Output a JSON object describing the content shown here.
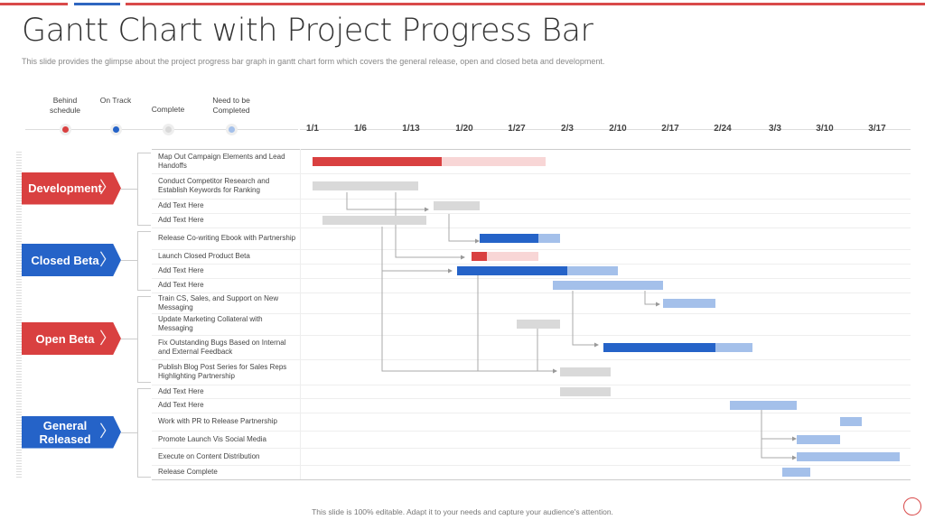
{
  "title": "Gantt Chart with Project Progress Bar",
  "subtitle": "This slide provides the glimpse about the project progress bar graph in gantt chart form which covers the general release, open and closed beta and development.",
  "footer": "This slide is 100% editable. Adapt it to your needs and capture your audience's attention.",
  "colors": {
    "behind": "#d94040",
    "behind_remaining": "#f8d6d6",
    "on_track": "#2563c8",
    "complete": "#d9d9d9",
    "to_complete": "#a4c0ea",
    "accent_red": "#d94a4a",
    "accent_blue": "#2e66c0"
  },
  "legend": [
    {
      "label": "Behind schedule",
      "status": "behind"
    },
    {
      "label": "On Track",
      "status": "on_track"
    },
    {
      "label": "Complete",
      "status": "complete"
    },
    {
      "label": "Need to be Completed",
      "status": "to_complete"
    }
  ],
  "phases": [
    {
      "label": "Development",
      "color": "#d94040"
    },
    {
      "label": "Closed Beta",
      "color": "#2563c8"
    },
    {
      "label": "Open Beta",
      "color": "#d94040"
    },
    {
      "label": "General Released",
      "color": "#2563c8"
    }
  ],
  "chart_data": {
    "type": "gantt",
    "x_ticks": [
      "1/1",
      "1/6",
      "1/13",
      "1/20",
      "1/27",
      "2/3",
      "2/10",
      "2/17",
      "2/24",
      "3/3",
      "3/10",
      "3/17"
    ],
    "tasks": [
      {
        "phase": "Development",
        "label": "Map Out Campaign Elements and Lead Handoffs",
        "segments": [
          {
            "start": "1/1",
            "end": "1/17",
            "status": "behind"
          },
          {
            "start": "1/17",
            "end": "1/31",
            "status": "behind_remaining"
          }
        ]
      },
      {
        "phase": "Development",
        "label": "Conduct Competitor Research and Establish Keywords for Ranking",
        "segments": [
          {
            "start": "1/1",
            "end": "1/14",
            "status": "complete"
          }
        ]
      },
      {
        "phase": "Development",
        "label": "Add Text Here",
        "segments": [
          {
            "start": "1/16",
            "end": "1/22",
            "status": "complete"
          }
        ]
      },
      {
        "phase": "Development",
        "label": "Add Text Here",
        "segments": [
          {
            "start": "1/2",
            "end": "1/15",
            "status": "complete"
          }
        ]
      },
      {
        "phase": "Closed Beta",
        "label": "Release Co-writing Ebook with Partnership",
        "segments": [
          {
            "start": "1/22",
            "end": "1/30",
            "status": "on_track"
          },
          {
            "start": "1/30",
            "end": "2/2",
            "status": "to_complete"
          }
        ]
      },
      {
        "phase": "Closed Beta",
        "label": "Launch Closed Product Beta",
        "segments": [
          {
            "start": "1/21",
            "end": "1/23",
            "status": "behind"
          },
          {
            "start": "1/23",
            "end": "1/30",
            "status": "behind_remaining"
          }
        ]
      },
      {
        "phase": "Closed Beta",
        "label": "Add Text Here",
        "segments": [
          {
            "start": "1/19",
            "end": "2/3",
            "status": "on_track"
          },
          {
            "start": "2/3",
            "end": "2/10",
            "status": "to_complete"
          }
        ]
      },
      {
        "phase": "Closed Beta",
        "label": "Add Text Here",
        "segments": [
          {
            "start": "2/1",
            "end": "2/16",
            "status": "to_complete"
          }
        ]
      },
      {
        "phase": "Open Beta",
        "label": "Train CS, Sales, and Support on New Messaging",
        "segments": [
          {
            "start": "2/16",
            "end": "2/23",
            "status": "to_complete"
          }
        ]
      },
      {
        "phase": "Open Beta",
        "label": "Update Marketing Collateral with Messaging",
        "segments": [
          {
            "start": "1/27",
            "end": "2/2",
            "status": "complete"
          }
        ]
      },
      {
        "phase": "Open Beta",
        "label": "Fix Outstanding Bugs Based on Internal and External Feedback",
        "segments": [
          {
            "start": "2/8",
            "end": "2/23",
            "status": "on_track"
          },
          {
            "start": "2/23",
            "end": "2/28",
            "status": "to_complete"
          }
        ]
      },
      {
        "phase": "Open Beta",
        "label": "Publish Blog Post Series for Sales Reps Highlighting Partnership",
        "segments": [
          {
            "start": "2/2",
            "end": "2/9",
            "status": "complete"
          }
        ]
      },
      {
        "phase": "General Released",
        "label": "Add Text Here",
        "segments": [
          {
            "start": "2/2",
            "end": "2/9",
            "status": "complete"
          }
        ]
      },
      {
        "phase": "General Released",
        "label": "Add Text Here",
        "segments": [
          {
            "start": "2/25",
            "end": "3/6",
            "status": "to_complete"
          }
        ]
      },
      {
        "phase": "General Released",
        "label": "Work with PR to Release Partnership",
        "segments": [
          {
            "start": "3/12",
            "end": "3/15",
            "status": "to_complete"
          }
        ]
      },
      {
        "phase": "General Released",
        "label": "Promote Launch Vis Social Media",
        "segments": [
          {
            "start": "3/6",
            "end": "3/12",
            "status": "to_complete"
          }
        ]
      },
      {
        "phase": "General Released",
        "label": "Execute on Content Distribution",
        "segments": [
          {
            "start": "3/6",
            "end": "3/20",
            "status": "to_complete"
          }
        ]
      },
      {
        "phase": "General Released",
        "label": "Release Complete",
        "segments": [
          {
            "start": "3/4",
            "end": "3/8",
            "status": "to_complete"
          }
        ]
      }
    ]
  }
}
